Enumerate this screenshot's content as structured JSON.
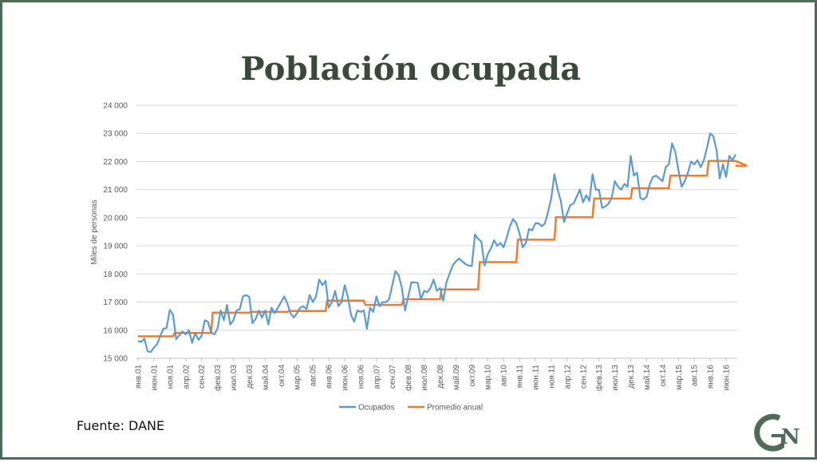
{
  "slide": {
    "title": "Población ocupada",
    "source": "Fuente: DANE",
    "logo_text": "GN"
  },
  "colors": {
    "ocupados": "#5b9bd5",
    "promedio": "#ed7d31",
    "grid": "#d9d9d9",
    "axis_text": "#595959",
    "frame": "#4d6b57",
    "logo": "#4d6b57"
  },
  "chart_data": {
    "type": "line",
    "title": "",
    "xlabel": "",
    "ylabel": "Miles de personas",
    "ylim": [
      15000,
      24000
    ],
    "yticks": [
      15000,
      16000,
      17000,
      18000,
      19000,
      20000,
      21000,
      22000,
      23000,
      24000
    ],
    "ytick_labels": [
      "15 000",
      "16 000",
      "17 000",
      "18 000",
      "19 000",
      "20 000",
      "21 000",
      "22 000",
      "23 000",
      "24 000"
    ],
    "grid": true,
    "legend_position": "bottom",
    "x_start": "янв.01",
    "x_tick_labels": [
      "янв.01",
      "июн.01",
      "ноя.01",
      "апр.02",
      "сен.02",
      "фев.03",
      "июл.03",
      "дек.03",
      "май.04",
      "окт.04",
      "мар.05",
      "авг.05",
      "янв.06",
      "июн.06",
      "ноя.06",
      "апр.07",
      "сен.07",
      "фев.08",
      "июл.08",
      "дек.08",
      "май.09",
      "окт.09",
      "мар.10",
      "авг.10",
      "янв.11",
      "июн.11",
      "ноя.11",
      "апр.12",
      "сен.12",
      "фев.13",
      "июл.13",
      "дек.13",
      "май.14",
      "окт.14",
      "мар.15",
      "авг.15",
      "янв.16",
      "июн.16"
    ],
    "series": [
      {
        "name": "Ocupados",
        "values": [
          15620,
          15580,
          15700,
          15250,
          15220,
          15380,
          15500,
          15800,
          16050,
          16080,
          16720,
          16560,
          15680,
          15820,
          15950,
          15850,
          16000,
          15550,
          15900,
          15650,
          15800,
          16350,
          16300,
          15920,
          15850,
          16050,
          16700,
          16350,
          16900,
          16200,
          16350,
          16700,
          16750,
          17200,
          17250,
          17180,
          16250,
          16400,
          16700,
          16450,
          16700,
          16200,
          16800,
          16600,
          16800,
          17000,
          17200,
          16950,
          16600,
          16450,
          16600,
          16800,
          16850,
          16750,
          17250,
          17000,
          17200,
          17800,
          17600,
          17750,
          16800,
          17000,
          17400,
          16850,
          17000,
          17600,
          17200,
          16550,
          16300,
          16700,
          16650,
          16700,
          16050,
          16800,
          16650,
          17200,
          16850,
          17000,
          17000,
          17100,
          17600,
          18100,
          17950,
          17500,
          16700,
          17200,
          17700,
          17700,
          17680,
          17100,
          17400,
          17350,
          17500,
          17800,
          17400,
          17500,
          17050,
          17700,
          18000,
          18300,
          18450,
          18550,
          18450,
          18350,
          18300,
          18280,
          19400,
          19250,
          19150,
          18300,
          18700,
          18900,
          19200,
          19000,
          19100,
          18950,
          19300,
          19700,
          19950,
          19800,
          19450,
          18950,
          19100,
          19600,
          19550,
          19800,
          19800,
          19700,
          19800,
          20200,
          20700,
          21550,
          21000,
          20600,
          19850,
          20150,
          20450,
          20500,
          20750,
          21000,
          20550,
          20800,
          20600,
          21550,
          21000,
          21000,
          20350,
          20400,
          20500,
          20700,
          21300,
          21100,
          21000,
          21200,
          21100,
          22200,
          21500,
          21600,
          20700,
          20650,
          20750,
          21200,
          21450,
          21500,
          21400,
          21300,
          21800,
          21900,
          22650,
          22350,
          21700,
          21100,
          21300,
          21600,
          22000,
          21900,
          22050,
          21800,
          22050,
          22500,
          23000,
          22900,
          22400,
          21400,
          21900,
          21450,
          22200,
          22050,
          22250
        ]
      },
      {
        "name": "Promedio anual",
        "year_values": [
          15780,
          15900,
          16620,
          16650,
          16680,
          17050,
          16900,
          17100,
          17450,
          18420,
          19220,
          20020,
          20680,
          21050,
          21500,
          22020,
          21850
        ],
        "last_year_months": 6
      }
    ]
  }
}
